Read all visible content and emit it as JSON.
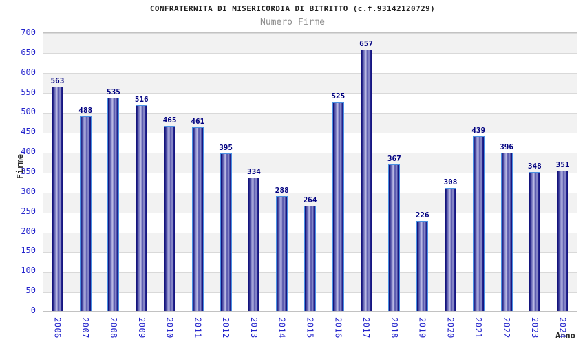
{
  "header": {
    "title": "CONFRATERNITA DI MISERICORDIA DI BITRITTO (c.f.93142120729)",
    "subtitle": "Numero Firme"
  },
  "chart_data": {
    "type": "bar",
    "title": "CONFRATERNITA DI MISERICORDIA DI BITRITTO (c.f.93142120729)",
    "subtitle": "Numero Firme",
    "xlabel": "Anno",
    "ylabel": "Firme",
    "categories": [
      "2006",
      "2007",
      "2008",
      "2009",
      "2010",
      "2011",
      "2012",
      "2013",
      "2014",
      "2015",
      "2016",
      "2017",
      "2018",
      "2019",
      "2020",
      "2021",
      "2022",
      "2023",
      "2024"
    ],
    "values": [
      563,
      488,
      535,
      516,
      465,
      461,
      395,
      334,
      288,
      264,
      525,
      657,
      367,
      226,
      308,
      439,
      396,
      348,
      351
    ],
    "ylim": [
      0,
      700
    ],
    "ytick_step": 50,
    "grid": "horizontal gridlines with alternating shaded bands",
    "legend": null,
    "bar_value_labels": true,
    "x_tick_rotation_deg": 90,
    "colors": {
      "bar_dark": "#14147d",
      "bar_mid": "#4a4aa5",
      "bar_light": "#c0c0e8",
      "bar_highlight": "#9a9ad2",
      "bar_outline": "#4a90e2",
      "tick_text": "#2424cc",
      "value_label_text": "#000080",
      "band_shade": "#f2f2f2",
      "gridline": "#d9d9d9",
      "title_text": "#1f1f1f",
      "subtitle_text": "#8f8f8f",
      "axis_title_text": "#2a2a2a"
    }
  }
}
